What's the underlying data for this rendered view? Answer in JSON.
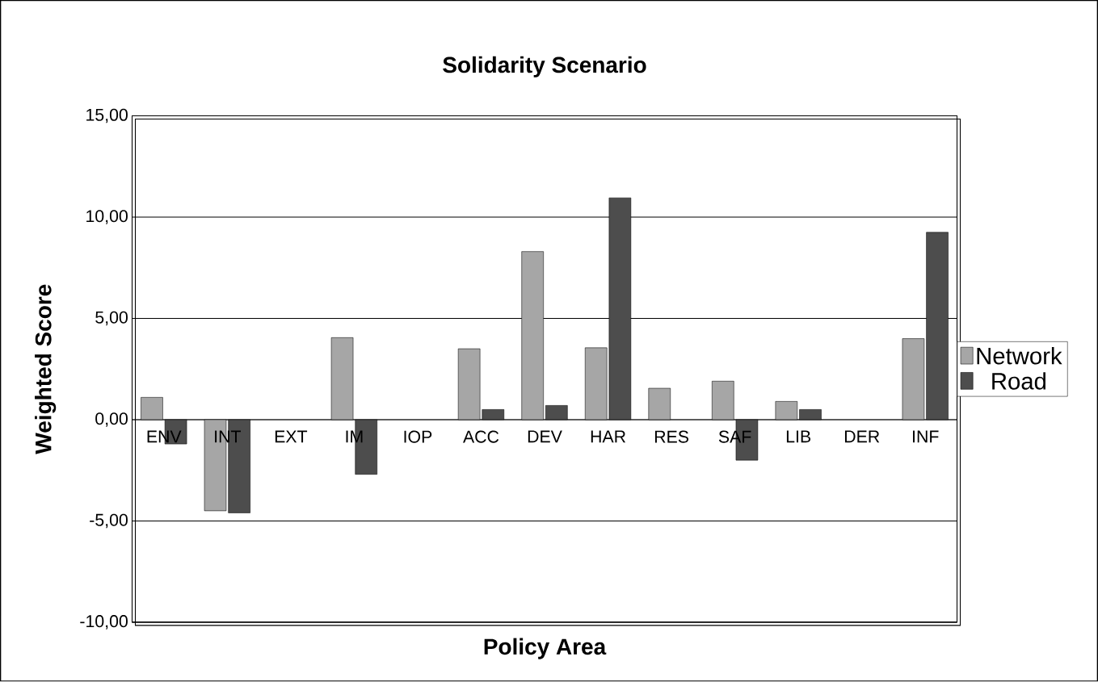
{
  "chart_data": {
    "type": "bar",
    "title": "Solidarity Scenario",
    "xlabel": "Policy Area",
    "ylabel": "Weighted Score",
    "categories": [
      "ENV",
      "INT",
      "EXT",
      "IM",
      "IOP",
      "ACC",
      "DEV",
      "HAR",
      "RES",
      "SAF",
      "LIB",
      "DER",
      "INF"
    ],
    "series": [
      {
        "name": "Network",
        "color": "#a6a6a6",
        "values": [
          1.1,
          -4.5,
          null,
          4.05,
          null,
          3.5,
          8.3,
          3.55,
          1.55,
          1.9,
          0.9,
          null,
          4.0
        ]
      },
      {
        "name": "Road",
        "color": "#4d4d4d",
        "values": [
          -1.2,
          -4.6,
          null,
          -2.7,
          null,
          0.5,
          0.7,
          10.95,
          null,
          -2.0,
          0.5,
          null,
          9.25
        ]
      }
    ],
    "ylim": [
      -10,
      15
    ],
    "yticks": [
      {
        "value": -10,
        "label": "-10,00"
      },
      {
        "value": -5,
        "label": "-5,00"
      },
      {
        "value": 0,
        "label": "0,00"
      },
      {
        "value": 5,
        "label": "5,00"
      },
      {
        "value": 10,
        "label": "10,00"
      },
      {
        "value": 15,
        "label": "15,00"
      }
    ],
    "grid": "y",
    "legend": "right"
  }
}
